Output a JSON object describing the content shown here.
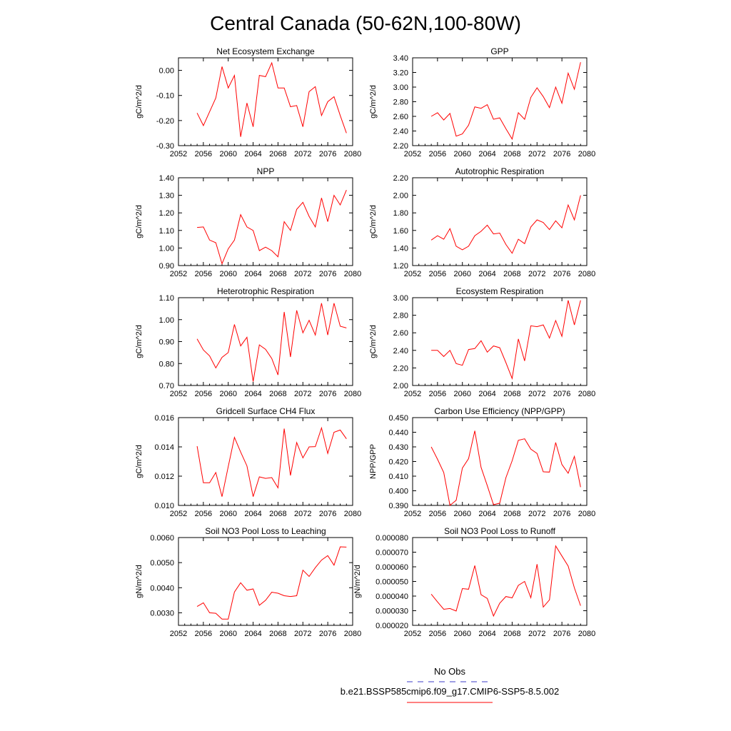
{
  "title": "Central Canada (50-62N,100-80W)",
  "legend": {
    "obs_label": "No Obs",
    "obs_color": "#3c3cc8",
    "model_label": "b.e21.BSSP585cmip6.f09_g17.CMIP6-SSP5-8.5.002",
    "model_color": "#ff0000"
  },
  "chart_data": [
    {
      "type": "line",
      "title": "Net Ecosystem Exchange",
      "ylabel": "gC/m^2/d",
      "xlim": [
        2052,
        2080
      ],
      "xticks": [
        "2052",
        "2056",
        "2060",
        "2064",
        "2068",
        "2072",
        "2076",
        "2080"
      ],
      "ylim": [
        -0.3,
        0.05
      ],
      "yticks": [
        "-0.30",
        "-0.20",
        "-0.10",
        "0.00"
      ],
      "series": [
        {
          "x": [
            2055,
            2056,
            2057,
            2058,
            2059,
            2060,
            2061,
            2062,
            2063,
            2064,
            2065,
            2066,
            2067,
            2068,
            2069,
            2070,
            2071,
            2072,
            2073,
            2074,
            2075,
            2076,
            2077,
            2078,
            2079
          ],
          "values": [
            -0.17,
            -0.22,
            -0.165,
            -0.11,
            0.015,
            -0.07,
            -0.02,
            -0.265,
            -0.13,
            -0.225,
            -0.02,
            -0.025,
            0.03,
            -0.07,
            -0.07,
            -0.145,
            -0.14,
            -0.225,
            -0.085,
            -0.065,
            -0.18,
            -0.125,
            -0.105,
            -0.18,
            -0.25
          ]
        }
      ]
    },
    {
      "type": "line",
      "title": "GPP",
      "ylabel": "gC/m^2/d",
      "xlim": [
        2052,
        2080
      ],
      "xticks": [
        "2052",
        "2056",
        "2060",
        "2064",
        "2068",
        "2072",
        "2076",
        "2080"
      ],
      "ylim": [
        2.2,
        3.4
      ],
      "yticks": [
        "2.20",
        "2.40",
        "2.60",
        "2.80",
        "3.00",
        "3.20",
        "3.40"
      ],
      "series": [
        {
          "x": [
            2055,
            2056,
            2057,
            2058,
            2059,
            2060,
            2061,
            2062,
            2063,
            2064,
            2065,
            2066,
            2067,
            2068,
            2069,
            2070,
            2071,
            2072,
            2073,
            2074,
            2075,
            2076,
            2077,
            2078,
            2079
          ],
          "values": [
            2.6,
            2.65,
            2.55,
            2.64,
            2.33,
            2.36,
            2.48,
            2.73,
            2.71,
            2.76,
            2.56,
            2.58,
            2.43,
            2.29,
            2.65,
            2.56,
            2.86,
            2.99,
            2.87,
            2.72,
            3.0,
            2.78,
            3.19,
            2.97,
            3.34
          ]
        }
      ]
    },
    {
      "type": "line",
      "title": "NPP",
      "ylabel": "gC/m^2/d",
      "xlim": [
        2052,
        2080
      ],
      "xticks": [
        "2052",
        "2056",
        "2060",
        "2064",
        "2068",
        "2072",
        "2076",
        "2080"
      ],
      "ylim": [
        0.9,
        1.4
      ],
      "yticks": [
        "0.90",
        "1.00",
        "1.10",
        "1.20",
        "1.30",
        "1.40"
      ],
      "series": [
        {
          "x": [
            2055,
            2056,
            2057,
            2058,
            2059,
            2060,
            2061,
            2062,
            2063,
            2064,
            2065,
            2066,
            2067,
            2068,
            2069,
            2070,
            2071,
            2072,
            2073,
            2074,
            2075,
            2076,
            2077,
            2078,
            2079
          ],
          "values": [
            1.117,
            1.12,
            1.045,
            1.03,
            0.91,
            0.995,
            1.045,
            1.19,
            1.12,
            1.1,
            0.985,
            1.005,
            0.985,
            0.95,
            1.15,
            1.1,
            1.22,
            1.26,
            1.18,
            1.12,
            1.285,
            1.15,
            1.3,
            1.245,
            1.33
          ]
        }
      ]
    },
    {
      "type": "line",
      "title": "Autotrophic Respiration",
      "ylabel": "gC/m^2/d",
      "xlim": [
        2052,
        2080
      ],
      "xticks": [
        "2052",
        "2056",
        "2060",
        "2064",
        "2068",
        "2072",
        "2076",
        "2080"
      ],
      "ylim": [
        1.2,
        2.2
      ],
      "yticks": [
        "1.20",
        "1.40",
        "1.60",
        "1.80",
        "2.00",
        "2.20"
      ],
      "series": [
        {
          "x": [
            2055,
            2056,
            2057,
            2058,
            2059,
            2060,
            2061,
            2062,
            2063,
            2064,
            2065,
            2066,
            2067,
            2068,
            2069,
            2070,
            2071,
            2072,
            2073,
            2074,
            2075,
            2076,
            2077,
            2078,
            2079
          ],
          "values": [
            1.49,
            1.54,
            1.5,
            1.62,
            1.42,
            1.38,
            1.42,
            1.54,
            1.59,
            1.66,
            1.56,
            1.57,
            1.44,
            1.34,
            1.5,
            1.45,
            1.64,
            1.72,
            1.69,
            1.61,
            1.71,
            1.63,
            1.89,
            1.72,
            2.0
          ]
        }
      ]
    },
    {
      "type": "line",
      "title": "Heterotrophic Respiration",
      "ylabel": "gC/m^2/d",
      "xlim": [
        2052,
        2080
      ],
      "xticks": [
        "2052",
        "2056",
        "2060",
        "2064",
        "2068",
        "2072",
        "2076",
        "2080"
      ],
      "ylim": [
        0.7,
        1.1
      ],
      "yticks": [
        "0.70",
        "0.80",
        "0.90",
        "1.00",
        "1.10"
      ],
      "series": [
        {
          "x": [
            2055,
            2056,
            2057,
            2058,
            2059,
            2060,
            2061,
            2062,
            2063,
            2064,
            2065,
            2066,
            2067,
            2068,
            2069,
            2070,
            2071,
            2072,
            2073,
            2074,
            2075,
            2076,
            2077,
            2078,
            2079
          ],
          "values": [
            0.912,
            0.862,
            0.835,
            0.78,
            0.828,
            0.85,
            0.978,
            0.88,
            0.92,
            0.718,
            0.885,
            0.865,
            0.823,
            0.748,
            1.035,
            0.83,
            1.042,
            0.94,
            0.997,
            0.93,
            1.075,
            0.93,
            1.075,
            0.97,
            0.962
          ]
        }
      ]
    },
    {
      "type": "line",
      "title": "Ecosystem Respiration",
      "ylabel": "gC/m^2/d",
      "xlim": [
        2052,
        2080
      ],
      "xticks": [
        "2052",
        "2056",
        "2060",
        "2064",
        "2068",
        "2072",
        "2076",
        "2080"
      ],
      "ylim": [
        2.0,
        3.0
      ],
      "yticks": [
        "2.00",
        "2.20",
        "2.40",
        "2.60",
        "2.80",
        "3.00"
      ],
      "series": [
        {
          "x": [
            2055,
            2056,
            2057,
            2058,
            2059,
            2060,
            2061,
            2062,
            2063,
            2064,
            2065,
            2066,
            2067,
            2068,
            2069,
            2070,
            2071,
            2072,
            2073,
            2074,
            2075,
            2076,
            2077,
            2078,
            2079
          ],
          "values": [
            2.4,
            2.4,
            2.33,
            2.4,
            2.25,
            2.23,
            2.41,
            2.42,
            2.51,
            2.38,
            2.45,
            2.43,
            2.26,
            2.08,
            2.53,
            2.28,
            2.68,
            2.67,
            2.69,
            2.54,
            2.74,
            2.56,
            2.97,
            2.69,
            2.97
          ]
        }
      ]
    },
    {
      "type": "line",
      "title": "Gridcell Surface CH4 Flux",
      "ylabel": "gC/m^2/d",
      "xlim": [
        2052,
        2080
      ],
      "xticks": [
        "2052",
        "2056",
        "2060",
        "2064",
        "2068",
        "2072",
        "2076",
        "2080"
      ],
      "ylim": [
        0.01,
        0.016
      ],
      "yticks": [
        "0.010",
        "0.012",
        "0.014",
        "0.016"
      ],
      "series": [
        {
          "x": [
            2055,
            2056,
            2057,
            2058,
            2059,
            2060,
            2061,
            2062,
            2063,
            2064,
            2065,
            2066,
            2067,
            2068,
            2069,
            2070,
            2071,
            2072,
            2073,
            2074,
            2075,
            2076,
            2077,
            2078,
            2079
          ],
          "values": [
            0.01405,
            0.01155,
            0.01155,
            0.01225,
            0.0106,
            0.01265,
            0.01465,
            0.01365,
            0.0127,
            0.0106,
            0.01195,
            0.01185,
            0.0119,
            0.0112,
            0.01525,
            0.01205,
            0.0143,
            0.01325,
            0.014,
            0.01402,
            0.0153,
            0.01355,
            0.015,
            0.01515,
            0.01455
          ]
        }
      ]
    },
    {
      "type": "line",
      "title": "Carbon Use Efficiency (NPP/GPP)",
      "ylabel": "NPP/GPP",
      "xlim": [
        2052,
        2080
      ],
      "xticks": [
        "2052",
        "2056",
        "2060",
        "2064",
        "2068",
        "2072",
        "2076",
        "2080"
      ],
      "ylim": [
        0.39,
        0.45
      ],
      "yticks": [
        "0.390",
        "0.400",
        "0.410",
        "0.420",
        "0.430",
        "0.440",
        "0.450"
      ],
      "series": [
        {
          "x": [
            2055,
            2056,
            2057,
            2058,
            2059,
            2060,
            2061,
            2062,
            2063,
            2064,
            2065,
            2066,
            2067,
            2068,
            2069,
            2070,
            2071,
            2072,
            2073,
            2074,
            2075,
            2076,
            2077,
            2078,
            2079
          ],
          "values": [
            0.43,
            0.4215,
            0.4125,
            0.39,
            0.3935,
            0.4155,
            0.422,
            0.441,
            0.416,
            0.4035,
            0.3905,
            0.3915,
            0.409,
            0.4205,
            0.4345,
            0.4355,
            0.4285,
            0.4255,
            0.413,
            0.4128,
            0.433,
            0.418,
            0.412,
            0.4235,
            0.4025
          ]
        }
      ]
    },
    {
      "type": "line",
      "title": "Soil NO3 Pool Loss to Leaching",
      "ylabel": "gN/m^2/d",
      "xlim": [
        2052,
        2080
      ],
      "xticks": [
        "2052",
        "2056",
        "2060",
        "2064",
        "2068",
        "2072",
        "2076",
        "2080"
      ],
      "ylim": [
        0.0025,
        0.006
      ],
      "yticks": [
        "0.0030",
        "0.0040",
        "0.0050",
        "0.0060"
      ],
      "series": [
        {
          "x": [
            2055,
            2056,
            2057,
            2058,
            2059,
            2060,
            2061,
            2062,
            2063,
            2064,
            2065,
            2066,
            2067,
            2068,
            2069,
            2070,
            2071,
            2072,
            2073,
            2074,
            2075,
            2076,
            2077,
            2078,
            2079
          ],
          "values": [
            0.00325,
            0.0034,
            0.003,
            0.00298,
            0.00275,
            0.00275,
            0.00383,
            0.0042,
            0.0039,
            0.00395,
            0.0033,
            0.0035,
            0.00382,
            0.00378,
            0.00368,
            0.00365,
            0.00368,
            0.0047,
            0.00445,
            0.0048,
            0.0051,
            0.00528,
            0.0049,
            0.00563,
            0.00562
          ]
        }
      ]
    },
    {
      "type": "line",
      "title": "Soil NO3 Pool Loss to Runoff",
      "ylabel": "gN/m^2/d",
      "xlim": [
        2052,
        2080
      ],
      "xticks": [
        "2052",
        "2056",
        "2060",
        "2064",
        "2068",
        "2072",
        "2076",
        "2080"
      ],
      "ylim": [
        2e-05,
        8e-05
      ],
      "yticks": [
        "0.000020",
        "0.000030",
        "0.000040",
        "0.000050",
        "0.000060",
        "0.000070",
        "0.000080"
      ],
      "series": [
        {
          "x": [
            2055,
            2056,
            2057,
            2058,
            2059,
            2060,
            2061,
            2062,
            2063,
            2064,
            2065,
            2066,
            2067,
            2068,
            2069,
            2070,
            2071,
            2072,
            2073,
            2074,
            2075,
            2076,
            2077,
            2078,
            2079
          ],
          "values": [
            4.13e-05,
            3.6e-05,
            3.1e-05,
            3.15e-05,
            2.98e-05,
            4.51e-05,
            4.47e-05,
            6.09e-05,
            4.1e-05,
            3.84e-05,
            2.64e-05,
            3.51e-05,
            3.97e-05,
            3.88e-05,
            4.73e-05,
            5e-05,
            3.89e-05,
            6.18e-05,
            3.25e-05,
            3.74e-05,
            7.43e-05,
            6.74e-05,
            6.05e-05,
            4.56e-05,
            3.34e-05
          ]
        }
      ]
    }
  ]
}
